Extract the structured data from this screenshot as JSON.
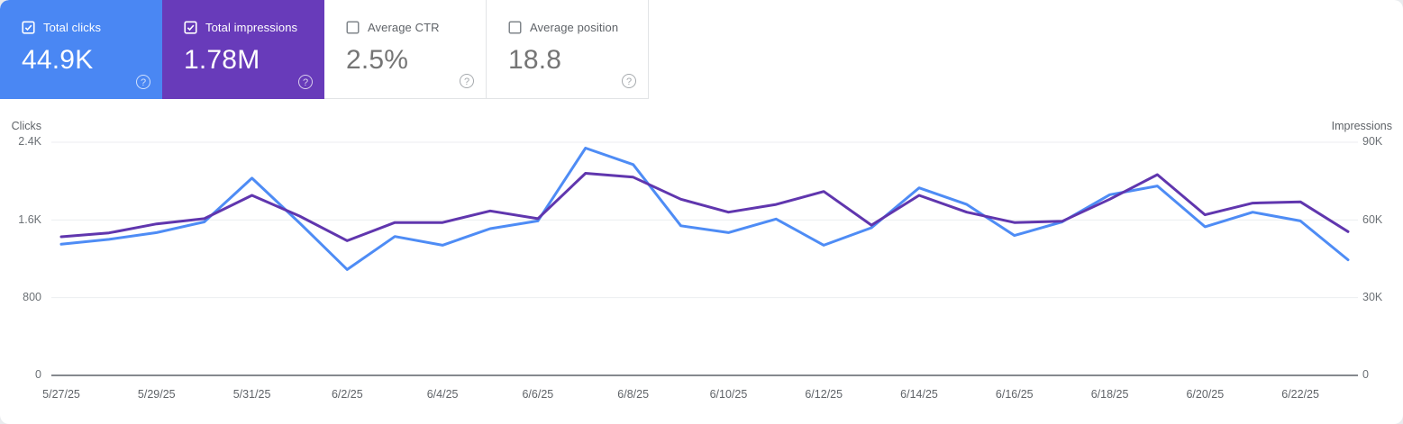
{
  "help": {
    "glyph": "?"
  },
  "cards": [
    {
      "label": "Total clicks",
      "value": "44.9K",
      "checked": true,
      "bg_color": "#4a87f3"
    },
    {
      "label": "Total impressions",
      "value": "1.78M",
      "checked": true,
      "bg_color": "#683bba"
    },
    {
      "label": "Average CTR",
      "value": "2.5%",
      "checked": false,
      "bg_color": "#ffffff"
    },
    {
      "label": "Average position",
      "value": "18.8",
      "checked": false,
      "bg_color": "#ffffff"
    }
  ],
  "chart_data": {
    "type": "line",
    "x": [
      "5/27/25",
      "5/28/25",
      "5/29/25",
      "5/30/25",
      "5/31/25",
      "6/1/25",
      "6/2/25",
      "6/3/25",
      "6/4/25",
      "6/5/25",
      "6/6/25",
      "6/7/25",
      "6/8/25",
      "6/9/25",
      "6/10/25",
      "6/11/25",
      "6/12/25",
      "6/13/25",
      "6/14/25",
      "6/15/25",
      "6/16/25",
      "6/17/25",
      "6/18/25",
      "6/19/25",
      "6/20/25",
      "6/21/25",
      "6/22/25",
      "6/23/25"
    ],
    "x_tick_labels": [
      "5/27/25",
      "5/29/25",
      "5/31/25",
      "6/2/25",
      "6/4/25",
      "6/6/25",
      "6/8/25",
      "6/10/25",
      "6/12/25",
      "6/14/25",
      "6/16/25",
      "6/18/25",
      "6/20/25",
      "6/22/25"
    ],
    "series": [
      {
        "name": "Clicks",
        "axis": "left",
        "color": "#4e8cf5",
        "values": [
          1350,
          1400,
          1470,
          1580,
          2030,
          1570,
          1090,
          1430,
          1340,
          1510,
          1590,
          2340,
          2170,
          1540,
          1470,
          1610,
          1340,
          1520,
          1930,
          1760,
          1440,
          1580,
          1860,
          1950,
          1530,
          1680,
          1590,
          1190
        ]
      },
      {
        "name": "Impressions",
        "axis": "right",
        "color": "#6036ae",
        "values": [
          53500,
          55000,
          58500,
          60500,
          69500,
          61500,
          52000,
          59000,
          59000,
          63500,
          60500,
          78000,
          76500,
          68000,
          63000,
          66000,
          71000,
          58000,
          69500,
          63000,
          59000,
          59500,
          68000,
          77500,
          62000,
          66500,
          67000,
          55500
        ]
      }
    ],
    "left_axis": {
      "label": "Clicks",
      "range": [
        0,
        2400
      ],
      "ticks_top_to_bottom": [
        "2.4K",
        "1.6K",
        "800",
        "0"
      ]
    },
    "right_axis": {
      "label": "Impressions",
      "range": [
        0,
        90000
      ],
      "ticks_top_to_bottom": [
        "90K",
        "60K",
        "30K",
        "0"
      ]
    },
    "grid": true,
    "legend_position": "none"
  }
}
